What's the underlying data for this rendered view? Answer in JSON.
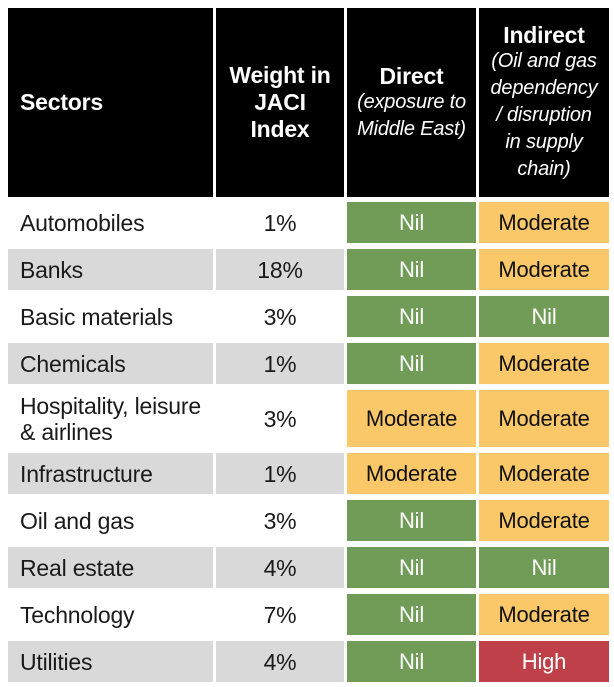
{
  "colors": {
    "header_bg": "#000000",
    "row_alt_gray": "#d9d9d9",
    "nil_green": "#709c57",
    "moderate_orange": "#fac868",
    "high_red": "#c04049"
  },
  "display": {
    "header": {
      "sectors_label": "Sectors",
      "weight_label": "Weight in\nJACI\nIndex",
      "direct_title": "Direct",
      "direct_subtitle": "(exposure to\nMiddle East)",
      "indirect_title": "Indirect",
      "indirect_subtitle": "(Oil and gas\ndependency\n/ disruption\nin supply\nchain)"
    },
    "rows": [
      {
        "sector": "Automobiles",
        "weight": "1%",
        "direct": "Nil",
        "indirect": "Moderate"
      },
      {
        "sector": "Banks",
        "weight": "18%",
        "direct": "Nil",
        "indirect": "Moderate"
      },
      {
        "sector": "Basic materials",
        "weight": "3%",
        "direct": "Nil",
        "indirect": "Nil"
      },
      {
        "sector": "Chemicals",
        "weight": "1%",
        "direct": "Nil",
        "indirect": "Moderate"
      },
      {
        "sector": "Hospitality, leisure\n& airlines",
        "weight": "3%",
        "direct": "Moderate",
        "indirect": "Moderate"
      },
      {
        "sector": "Infrastructure",
        "weight": "1%",
        "direct": "Moderate",
        "indirect": "Moderate"
      },
      {
        "sector": "Oil and gas",
        "weight": "3%",
        "direct": "Nil",
        "indirect": "Moderate"
      },
      {
        "sector": "Real estate",
        "weight": "4%",
        "direct": "Nil",
        "indirect": "Nil"
      },
      {
        "sector": "Technology",
        "weight": "7%",
        "direct": "Nil",
        "indirect": "Moderate"
      },
      {
        "sector": "Utilities",
        "weight": "4%",
        "direct": "Nil",
        "indirect": "High"
      }
    ]
  },
  "chart_data": {
    "type": "table",
    "columns": [
      "Sectors",
      "Weight in JACI Index",
      "Direct (exposure to Middle East)",
      "Indirect (Oil and gas dependency / disruption in supply chain)"
    ],
    "rows": [
      [
        "Automobiles",
        "1%",
        "Nil",
        "Moderate"
      ],
      [
        "Banks",
        "18%",
        "Nil",
        "Moderate"
      ],
      [
        "Basic materials",
        "3%",
        "Nil",
        "Nil"
      ],
      [
        "Chemicals",
        "1%",
        "Nil",
        "Moderate"
      ],
      [
        "Hospitality, leisure & airlines",
        "3%",
        "Moderate",
        "Moderate"
      ],
      [
        "Infrastructure",
        "1%",
        "Moderate",
        "Moderate"
      ],
      [
        "Oil and gas",
        "3%",
        "Nil",
        "Moderate"
      ],
      [
        "Real estate",
        "4%",
        "Nil",
        "Nil"
      ],
      [
        "Technology",
        "7%",
        "Nil",
        "Moderate"
      ],
      [
        "Utilities",
        "4%",
        "Nil",
        "High"
      ]
    ],
    "rating_scale": [
      "Nil",
      "Moderate",
      "High"
    ],
    "rating_colors": {
      "Nil": "#709c57",
      "Moderate": "#fac868",
      "High": "#c04049"
    },
    "legend_position": "none",
    "grid": "off"
  }
}
